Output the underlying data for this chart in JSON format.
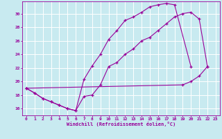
{
  "xlabel": "Windchill (Refroidissement éolien,°C)",
  "bg_color": "#c8eaf0",
  "grid_color": "#aacccc",
  "line_color": "#990099",
  "ylim": [
    15.0,
    31.8
  ],
  "xlim": [
    -0.5,
    23.5
  ],
  "yticks": [
    16,
    18,
    20,
    22,
    24,
    26,
    28,
    30
  ],
  "xticks": [
    0,
    1,
    2,
    3,
    4,
    5,
    6,
    7,
    8,
    9,
    10,
    11,
    12,
    13,
    14,
    15,
    16,
    17,
    18,
    19,
    20,
    21,
    22,
    23
  ],
  "line1_x": [
    0,
    1,
    2,
    3,
    4,
    5,
    6,
    7,
    8,
    9,
    10,
    11,
    12,
    13,
    14,
    15,
    16,
    17,
    18,
    20
  ],
  "line1_y": [
    19.0,
    18.3,
    17.5,
    17.0,
    16.5,
    16.0,
    15.7,
    20.3,
    22.3,
    24.0,
    26.2,
    27.5,
    29.0,
    29.5,
    30.2,
    31.0,
    31.3,
    31.5,
    31.3,
    22.2
  ],
  "line2_x": [
    0,
    1,
    2,
    3,
    4,
    5,
    6,
    7,
    8,
    9,
    10,
    11,
    12,
    13,
    14,
    15,
    16,
    17,
    18,
    19,
    20,
    21,
    22
  ],
  "line2_y": [
    19.0,
    18.3,
    17.5,
    17.0,
    16.5,
    16.0,
    15.7,
    17.8,
    18.0,
    19.5,
    22.2,
    22.8,
    24.0,
    24.8,
    26.0,
    26.5,
    27.5,
    28.5,
    29.5,
    30.0,
    30.2,
    29.2,
    22.2
  ],
  "line3_x": [
    0,
    19,
    20,
    21,
    22
  ],
  "line3_y": [
    19.0,
    19.5,
    20.0,
    20.8,
    22.2
  ]
}
